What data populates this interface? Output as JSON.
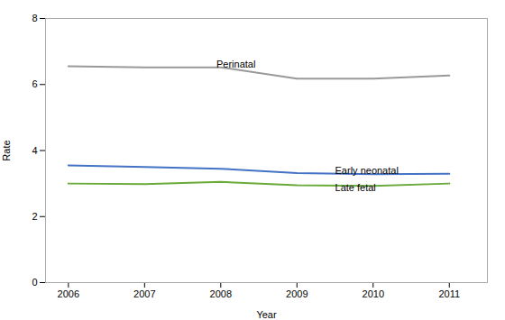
{
  "chart_data": {
    "type": "line",
    "x": [
      2006,
      2007,
      2008,
      2009,
      2010,
      2011
    ],
    "series": [
      {
        "color": "#999999",
        "values": [
          6.55,
          6.52,
          6.52,
          6.18,
          6.18,
          6.27
        ]
      },
      {
        "color": "#4472c4",
        "values": [
          3.55,
          3.5,
          3.45,
          3.32,
          3.28,
          3.3
        ]
      },
      {
        "color": "#6aaa3a",
        "values": [
          3.0,
          2.98,
          3.05,
          2.95,
          2.93,
          3.0
        ]
      }
    ],
    "annotations": [
      {
        "text": "Perinatal",
        "x": 2008.2,
        "y": 6.52
      },
      {
        "text": "Early neonatal",
        "x": 2009.5,
        "y": 3.38
      },
      {
        "text": "Late fetal",
        "x": 2009.5,
        "y": 2.86
      }
    ],
    "xlabel": "Year",
    "ylabel": "Rate",
    "xlim": [
      2005.7,
      2011.5
    ],
    "xticks": [
      2006,
      2007,
      2008,
      2009,
      2010,
      2011
    ],
    "ylim": [
      0,
      8
    ],
    "yticks": [
      0,
      2,
      4,
      6,
      8
    ],
    "grid": false
  }
}
